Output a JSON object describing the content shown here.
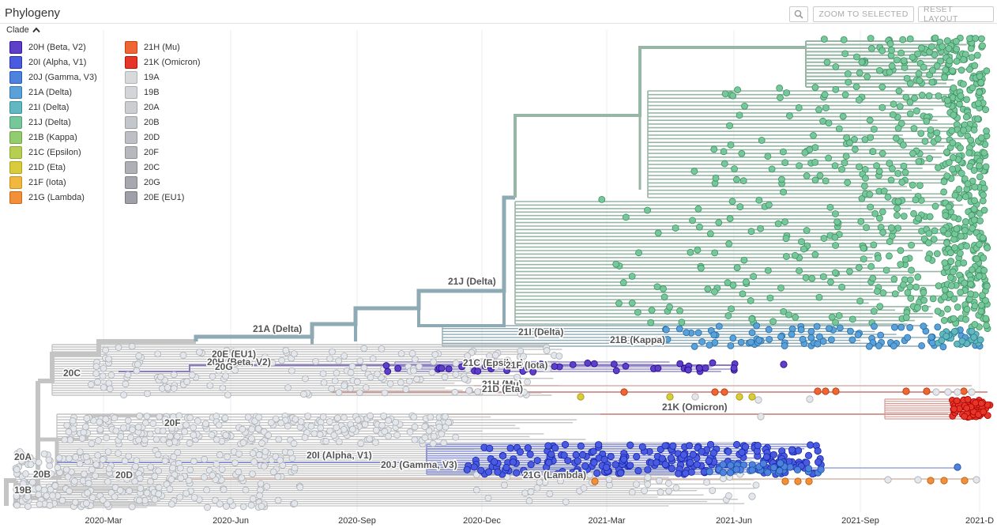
{
  "header": {
    "title": "Phylogeny",
    "zoom_label": "ZOOM TO SELECTED",
    "reset_label": "RESET LAYOUT",
    "clade_toggle": "Clade"
  },
  "legend": {
    "items": [
      {
        "label": "20H (Beta, V2)",
        "color": "#5e3fc7"
      },
      {
        "label": "20I (Alpha, V1)",
        "color": "#4a5be0"
      },
      {
        "label": "20J (Gamma, V3)",
        "color": "#4e82dc"
      },
      {
        "label": "21A (Delta)",
        "color": "#5aa1d9"
      },
      {
        "label": "21I (Delta)",
        "color": "#62b7c1"
      },
      {
        "label": "21J (Delta)",
        "color": "#76c89a"
      },
      {
        "label": "21B (Kappa)",
        "color": "#93cc6f"
      },
      {
        "label": "21C (Epsilon)",
        "color": "#b6cf52"
      },
      {
        "label": "21D (Eta)",
        "color": "#d8cc3d"
      },
      {
        "label": "21F (Iota)",
        "color": "#f1b73e"
      },
      {
        "label": "21G (Lambda)",
        "color": "#f18f3b"
      },
      {
        "label": "21H (Mu)",
        "color": "#ee6633"
      },
      {
        "label": "21K (Omicron)",
        "color": "#e43629"
      },
      {
        "label": "19A",
        "color": "#d8d9db"
      },
      {
        "label": "19B",
        "color": "#d3d5d8"
      },
      {
        "label": "20A",
        "color": "#cbcdd0"
      },
      {
        "label": "20B",
        "color": "#c3c6ca"
      },
      {
        "label": "20D",
        "color": "#bcbfc4"
      },
      {
        "label": "20F",
        "color": "#b5b8bd"
      },
      {
        "label": "20C",
        "color": "#adb0b5"
      },
      {
        "label": "20G",
        "color": "#a5a8ae"
      },
      {
        "label": "20E (EU1)",
        "color": "#9da0a6"
      }
    ]
  },
  "axis": {
    "ticks": [
      "2020-Mar",
      "2020-Jun",
      "2020-Sep",
      "2020-Dec",
      "2021-Mar",
      "2021-Jun",
      "2021-Sep",
      "2021-D"
    ]
  },
  "clade_labels": [
    "21J (Delta)",
    "21A (Delta)",
    "21I (Delta)",
    "21B (Kappa)",
    "20E (EU1)",
    "20H (Beta, V2)",
    "20G",
    "20C",
    "21C (Epsilon)",
    "21F (Iota)",
    "21H (Mu)",
    "21D (Eta)",
    "21K (Omicron)",
    "20F",
    "20A",
    "20I (Alpha, V1)",
    "20J (Gamma, V3)",
    "20B",
    "20D",
    "21G (Lambda)",
    "19B"
  ],
  "colors": {
    "branch_grey": "#c4c4c4",
    "branch_delta": "#8daab5",
    "branch_21j": "#98b6a6",
    "node_grey": "#e3e6ea"
  }
}
